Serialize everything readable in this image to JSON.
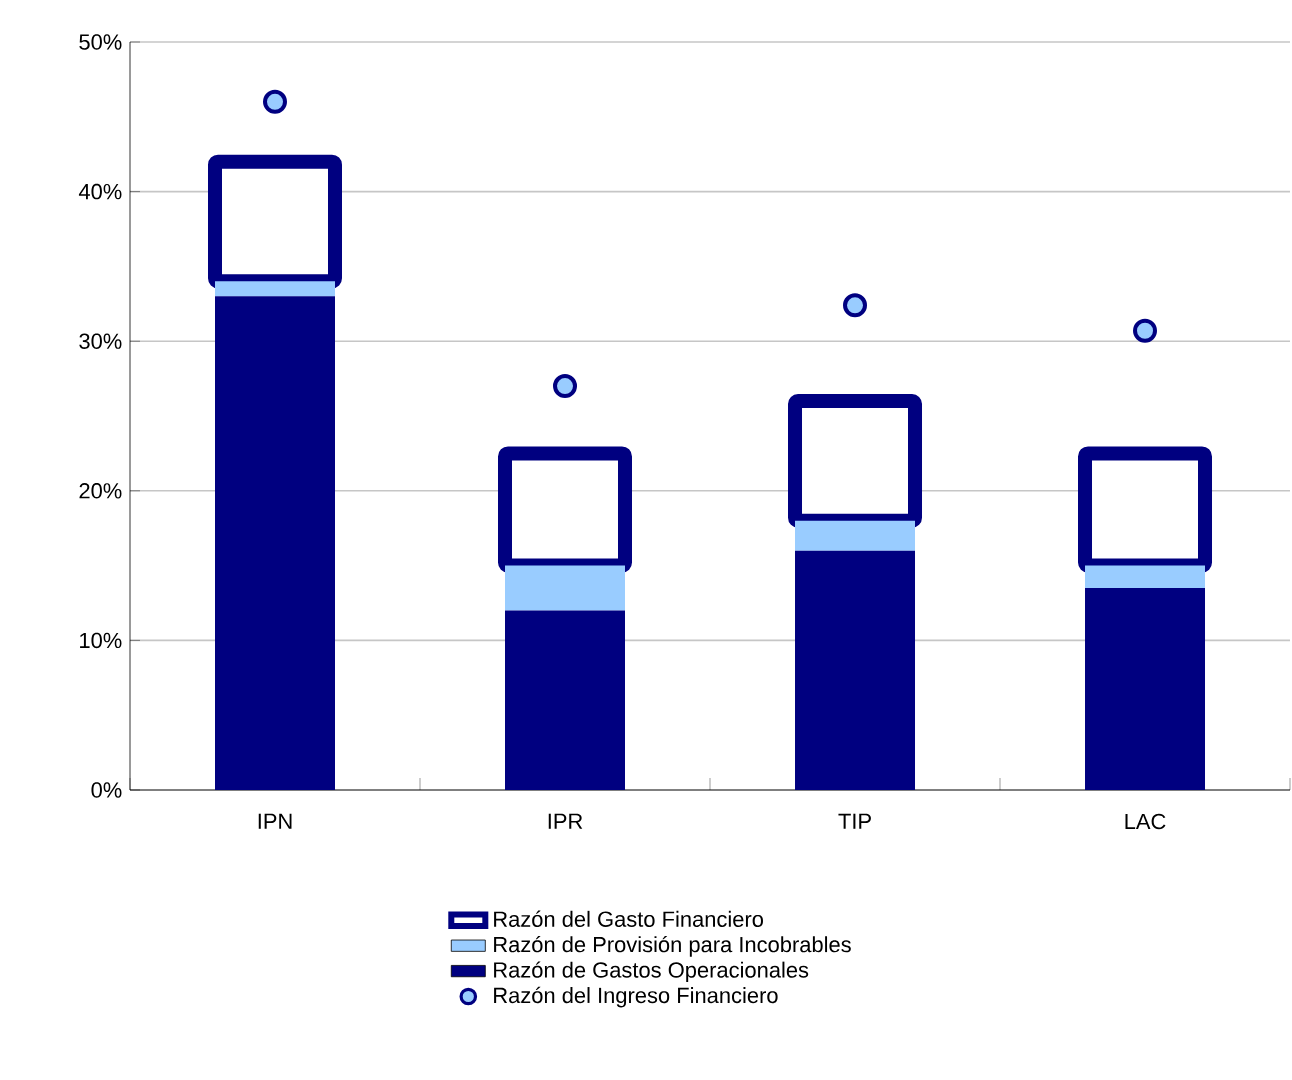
{
  "chart_data": {
    "type": "bar",
    "stacked": true,
    "categories": [
      "IPN",
      "IPR",
      "TIP",
      "LAC"
    ],
    "series": [
      {
        "name": "Razón de Gastos Operacionales",
        "color": "#000080",
        "values": [
          33,
          12,
          16,
          13.5
        ]
      },
      {
        "name": "Razón de Provisión para Incobrables",
        "color": "#99ccff",
        "values": [
          1,
          3,
          2,
          1.5
        ]
      },
      {
        "name": "Razón del Gasto Financiero",
        "color": "#000080",
        "values": [
          8,
          7.5,
          8,
          7.5
        ]
      },
      {
        "name": "Razón del Ingreso Financiero",
        "type": "scatter",
        "color": "#99ccff",
        "values": [
          46,
          27,
          32.4,
          30.7
        ]
      }
    ],
    "ylim": [
      0,
      50
    ],
    "yticks": [
      {
        "value": 0,
        "label": "0%"
      },
      {
        "value": 10,
        "label": "10%"
      },
      {
        "value": 20,
        "label": "20%"
      },
      {
        "value": 30,
        "label": "30%"
      },
      {
        "value": 40,
        "label": "40%"
      },
      {
        "value": 50,
        "label": "50%"
      }
    ],
    "grid": "y",
    "legend": "bottom"
  }
}
